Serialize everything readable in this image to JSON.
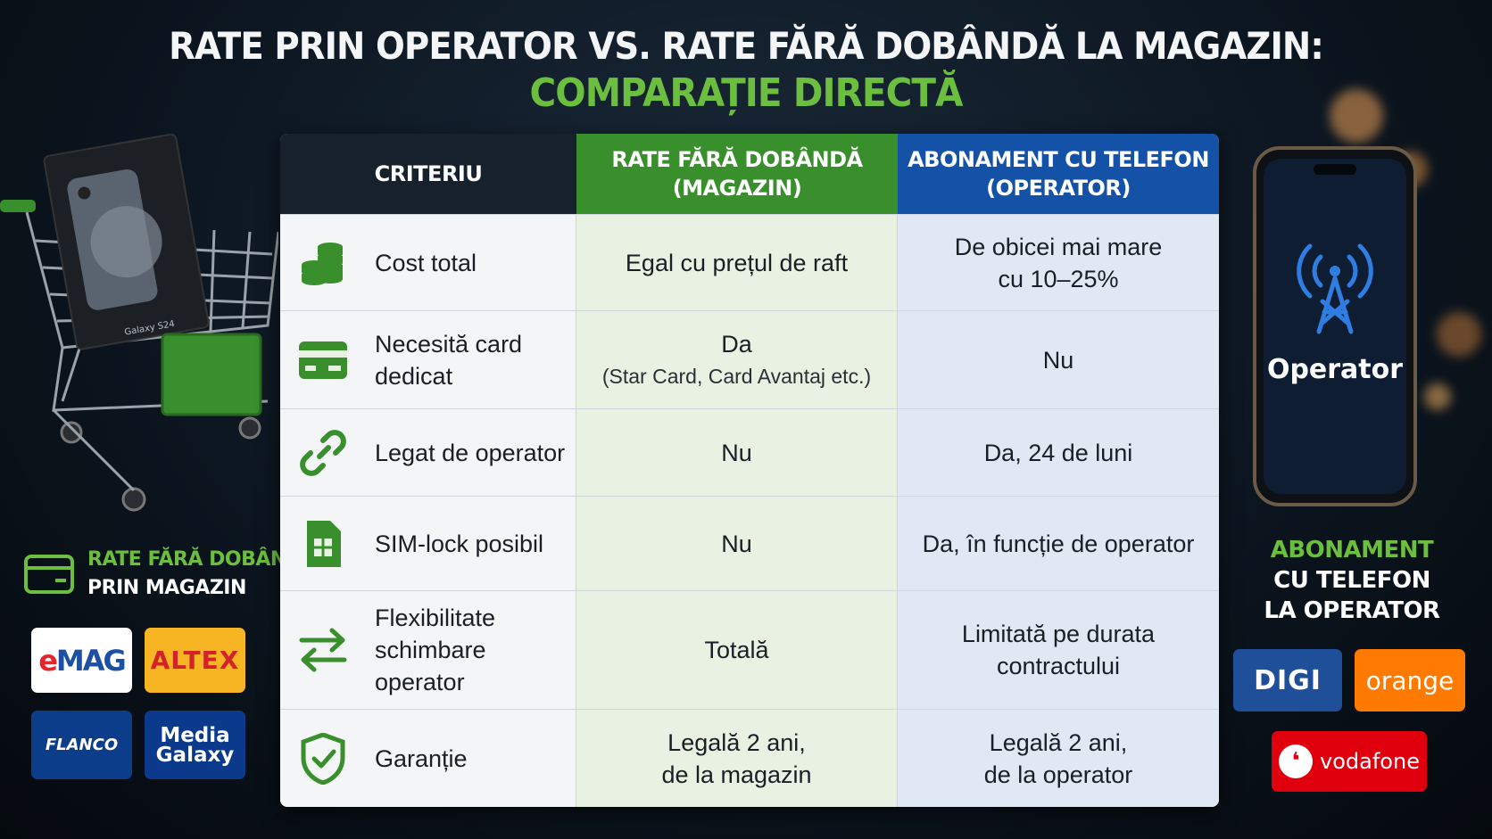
{
  "title": {
    "line1": "RATE PRIN OPERATOR VS. RATE FĂRĂ DOBÂNDĂ LA MAGAZIN:",
    "line2": "COMPARAȚIE DIRECTĂ"
  },
  "table": {
    "headers": {
      "criteriu": "CRITERIU",
      "shop_l1": "RATE FĂRĂ DOBÂNDĂ",
      "shop_l2": "(MAGAZIN)",
      "op_l1": "ABONAMENT CU TELEFON",
      "op_l2": "(OPERATOR)"
    },
    "rows": [
      {
        "icon": "coins-icon",
        "crit_l1": "Cost total",
        "crit_l2": "",
        "shop_l1": "Egal cu prețul de raft",
        "shop_l2": "",
        "op_l1": "De obicei mai mare",
        "op_l2": "cu 10–25%"
      },
      {
        "icon": "credit-card-icon",
        "crit_l1": "Necesită card",
        "crit_l2": "dedicat",
        "shop_l1": "Da",
        "shop_l2": "(Star Card, Card Avantaj etc.)",
        "op_l1": "Nu",
        "op_l2": ""
      },
      {
        "icon": "link-icon",
        "crit_l1": "Legat de operator",
        "crit_l2": "",
        "shop_l1": "Nu",
        "shop_l2": "",
        "op_l1": "Da, 24 de luni",
        "op_l2": ""
      },
      {
        "icon": "sim-card-icon",
        "crit_l1": "SIM-lock posibil",
        "crit_l2": "",
        "shop_l1": "Nu",
        "shop_l2": "",
        "op_l1": "Da, în funcție de operator",
        "op_l2": ""
      },
      {
        "icon": "swap-arrows-icon",
        "crit_l1": "Flexibilitate",
        "crit_l2": "schimbare operator",
        "shop_l1": "Totală",
        "shop_l2": "",
        "op_l1": "Limitată pe durata",
        "op_l2": "contractului"
      },
      {
        "icon": "shield-check-icon",
        "crit_l1": "Garanție",
        "crit_l2": "",
        "shop_l1": "Legală 2 ani,",
        "shop_l2": "de la magazin",
        "op_l1": "Legală 2 ani,",
        "op_l2": "de la operator"
      }
    ]
  },
  "left": {
    "box_text": "Galaxy S24",
    "label_l1": "RATE FĂRĂ DOBÂNDĂ",
    "label_l2": "PRIN MAGAZIN",
    "logos": {
      "emag_e": "e",
      "emag_rest": "MAG",
      "altex": "ALTEX",
      "flanco": "FLANCO",
      "mg_l1": "Media",
      "mg_l2": "Galaxy"
    }
  },
  "right": {
    "phone_text": "Operator",
    "label_l1": "ABONAMENT",
    "label_l2": "CU TELEFON",
    "label_l3": "LA OPERATOR",
    "logos": {
      "digi": "DIGI",
      "orange": "orange",
      "vodafone": "vodafone"
    }
  },
  "colors": {
    "green": "#3a8f2d",
    "blue": "#1452a8",
    "dark": "#17212c",
    "accent_green": "#6cbf3e"
  }
}
